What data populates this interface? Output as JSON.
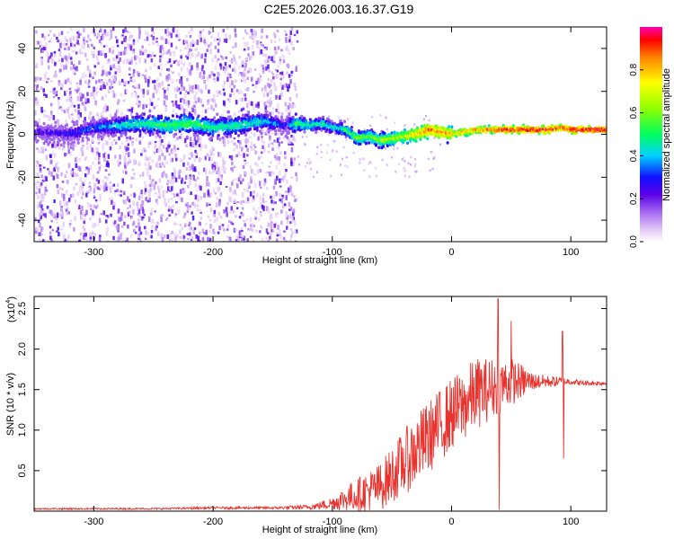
{
  "title": "C2E5.2026.003.16.37.G19",
  "chart_data": [
    {
      "type": "heatmap",
      "xlabel": "Height of straight line (km)",
      "ylabel": "Frequency (Hz)",
      "xlim": [
        -350,
        130
      ],
      "ylim": [
        -50,
        50
      ],
      "x_ticks": [
        -300,
        -200,
        -100,
        0,
        100
      ],
      "y_ticks": [
        -40,
        -20,
        0,
        20,
        40
      ],
      "x_tick_labels": [
        "-300",
        "-200",
        "-100",
        "0",
        "100"
      ],
      "y_tick_labels": [
        "-40",
        "-20",
        "0",
        "20",
        "40"
      ],
      "colorbar": {
        "label": "Normalized spectral amplitude",
        "range": [
          0,
          1
        ],
        "ticks": [
          0.0,
          0.2,
          0.4,
          0.6,
          0.8
        ],
        "tick_labels": [
          "0.0",
          "0.2",
          "0.4",
          "0.6",
          "0.8"
        ]
      },
      "ridge": {
        "x": [
          -345,
          -320,
          -300,
          -280,
          -260,
          -240,
          -220,
          -200,
          -180,
          -160,
          -140,
          -130,
          -120,
          -110,
          -100,
          -90,
          -80,
          -70,
          -60,
          -50,
          -40,
          -30,
          -20,
          -10,
          0,
          10,
          20,
          40,
          60,
          80,
          90,
          100,
          130
        ],
        "y": [
          1,
          0,
          3,
          4,
          5,
          4,
          5,
          3,
          4,
          6,
          4,
          5,
          4,
          5,
          3,
          2,
          -2,
          -1,
          -3,
          -2,
          -1,
          0,
          2,
          1,
          0,
          1,
          2,
          2,
          2,
          2,
          3,
          2,
          2
        ],
        "amplitude": [
          0.25,
          0.3,
          0.35,
          0.45,
          0.5,
          0.55,
          0.55,
          0.5,
          0.5,
          0.45,
          0.3,
          0.55,
          0.5,
          0.5,
          0.45,
          0.5,
          0.6,
          0.6,
          0.65,
          0.65,
          0.7,
          0.8,
          0.9,
          0.85,
          0.8,
          0.85,
          0.85,
          0.95,
          0.97,
          0.98,
          0.9,
          0.98,
          0.98
        ]
      },
      "band_edge_x": -130
    },
    {
      "type": "line",
      "xlabel": "Height of straight line (km)",
      "ylabel": "SNR (10 * v/v)",
      "y_scale_label": "(x10",
      "y_scale_exp": "4",
      "xlim": [
        -350,
        130
      ],
      "ylim": [
        0,
        2.65
      ],
      "x_ticks": [
        -300,
        -200,
        -100,
        0,
        100
      ],
      "y_ticks": [
        0.5,
        1.0,
        1.5,
        2.0,
        2.5
      ],
      "x_tick_labels": [
        "-300",
        "-200",
        "-100",
        "0",
        "100"
      ],
      "y_tick_labels": [
        "0.5",
        "1.0",
        "1.5",
        "2.0",
        "2.5"
      ],
      "color": "#e8332f",
      "envelope": {
        "x": [
          -350,
          -300,
          -250,
          -200,
          -150,
          -120,
          -110,
          -100,
          -90,
          -80,
          -70,
          -60,
          -50,
          -40,
          -30,
          -20,
          -10,
          0,
          10,
          20,
          30,
          40,
          50,
          60,
          70,
          80,
          90,
          100,
          110,
          120,
          130
        ],
        "mean": [
          0.03,
          0.03,
          0.03,
          0.04,
          0.04,
          0.05,
          0.07,
          0.1,
          0.15,
          0.2,
          0.25,
          0.3,
          0.45,
          0.6,
          0.75,
          0.9,
          1.05,
          1.2,
          1.3,
          1.45,
          1.5,
          1.55,
          1.6,
          1.6,
          1.6,
          1.6,
          1.6,
          1.6,
          1.58,
          1.58,
          1.58
        ],
        "noise": [
          0.01,
          0.01,
          0.01,
          0.015,
          0.015,
          0.03,
          0.05,
          0.08,
          0.15,
          0.2,
          0.25,
          0.3,
          0.35,
          0.4,
          0.45,
          0.45,
          0.45,
          0.45,
          0.45,
          0.45,
          0.4,
          0.35,
          0.3,
          0.2,
          0.1,
          0.08,
          0.06,
          0.04,
          0.03,
          0.03,
          0.03
        ]
      },
      "spikes": [
        {
          "x": 39,
          "y": 2.62
        },
        {
          "x": 40,
          "y": 0.02
        },
        {
          "x": 50,
          "y": 2.35
        },
        {
          "x": 93,
          "y": 2.22
        },
        {
          "x": 94,
          "y": 0.65
        }
      ]
    }
  ]
}
